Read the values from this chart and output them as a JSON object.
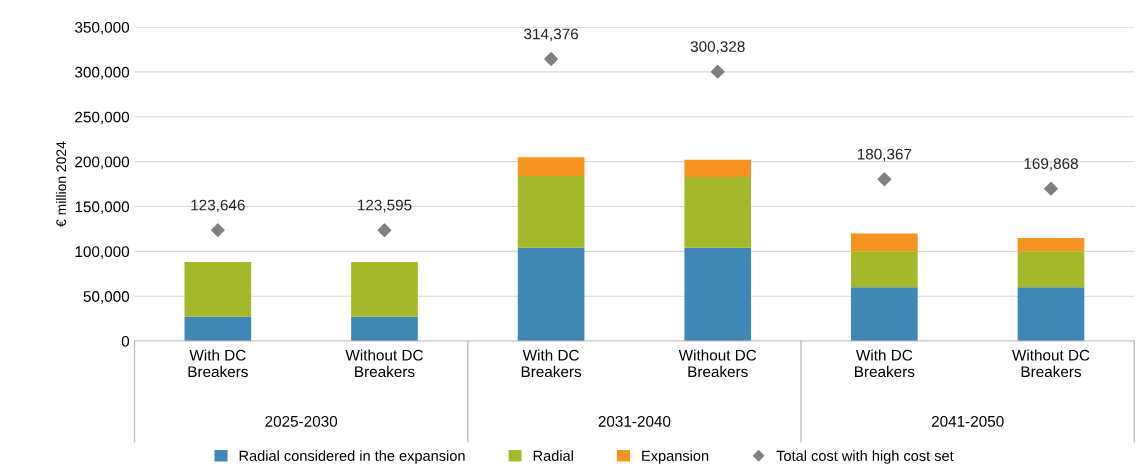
{
  "chart_data": {
    "type": "bar",
    "stacked": true,
    "categories": [
      "With DC\nBreakers",
      "Without DC\nBreakers",
      "With DC\nBreakers",
      "Without DC\nBreakers",
      "With DC\nBreakers",
      "Without DC\nBreakers"
    ],
    "series": [
      {
        "name": "Radial considered in the expansion",
        "color": "#3f87b5",
        "values": [
          27000,
          27000,
          104000,
          104000,
          60000,
          60000
        ]
      },
      {
        "name": "Radial",
        "color": "#a5b82a",
        "values": [
          61000,
          61000,
          80000,
          79000,
          40000,
          40000
        ]
      },
      {
        "name": "Expansion",
        "color": "#f7931e",
        "values": [
          0,
          0,
          21000,
          19000,
          20000,
          15000
        ]
      },
      {
        "name": "Total cost with high cost set",
        "type": "scatter",
        "marker": "diamond",
        "color": "#808080",
        "values": [
          123646,
          123595,
          314376,
          300328,
          180367,
          169868
        ],
        "value_labels": [
          "123,646",
          "123,595",
          "314,376",
          "300,328",
          "180,367",
          "169,868"
        ]
      }
    ],
    "annotations": [
      "2025-2030",
      "2031-2040",
      "2041-2050"
    ],
    "ylabel": "€ million 2024",
    "ylim": [
      0,
      350000
    ],
    "yticks": [
      0,
      {
        "value": 50000,
        "label": "50,000"
      },
      {
        "value": 100000,
        "label": "100,000"
      },
      {
        "value": 150000,
        "label": "150,000"
      },
      {
        "value": 200000,
        "label": "200,000"
      },
      {
        "value": 250000,
        "label": "250,000"
      },
      {
        "value": 300000,
        "label": "300,000"
      },
      {
        "value": 350000,
        "label": "350,000"
      }
    ],
    "grid": "y",
    "legend": "bottom"
  }
}
